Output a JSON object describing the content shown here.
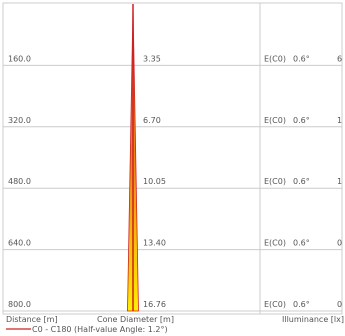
{
  "chart_data": {
    "type": "area",
    "rows": [
      {
        "distance": "160.0",
        "diameter": "3.35",
        "illum_label": "E(C0)",
        "angle": "0.6°",
        "value": "6"
      },
      {
        "distance": "320.0",
        "diameter": "6.70",
        "illum_label": "E(C0)",
        "angle": "0.6°",
        "value": "1"
      },
      {
        "distance": "480.0",
        "diameter": "10.05",
        "illum_label": "E(C0)",
        "angle": "0.6°",
        "value": "1"
      },
      {
        "distance": "640.0",
        "diameter": "13.40",
        "illum_label": "E(C0)",
        "angle": "0.6°",
        "value": "0"
      },
      {
        "distance": "800.0",
        "diameter": "16.76",
        "illum_label": "E(C0)",
        "angle": "0.6°",
        "value": "0"
      }
    ],
    "cone": {
      "max_distance": 800,
      "max_diameter": 16.76,
      "half_value_angle_deg": 1.2
    },
    "labels": {
      "distance": "Distance [m]",
      "diameter": "Cone Diameter [m]",
      "illuminance": "Illuminance [lx]"
    },
    "legend": {
      "text": "C0 - C180 (Half-value Angle: 1.2°)",
      "color": "#cc2222"
    },
    "colors": {
      "line": "#cc2222",
      "cone_top": "#e8541e",
      "cone_bottom": "#ffee00",
      "grid": "#cccccc"
    }
  }
}
